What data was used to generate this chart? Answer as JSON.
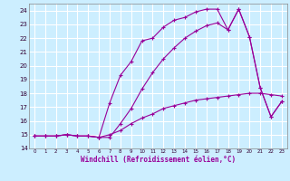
{
  "xlabel": "Windchill (Refroidissement éolien,°C)",
  "background_color": "#cceeff",
  "grid_color": "#ffffff",
  "line_color": "#990099",
  "xlim": [
    -0.5,
    23.5
  ],
  "ylim": [
    14.0,
    24.5
  ],
  "yticks": [
    14,
    15,
    16,
    17,
    18,
    19,
    20,
    21,
    22,
    23,
    24
  ],
  "xticks": [
    0,
    1,
    2,
    3,
    4,
    5,
    6,
    7,
    8,
    9,
    10,
    11,
    12,
    13,
    14,
    15,
    16,
    17,
    18,
    19,
    20,
    21,
    22,
    23
  ],
  "line1_x": [
    0,
    1,
    2,
    3,
    4,
    5,
    6,
    7,
    8,
    9,
    10,
    11,
    12,
    13,
    14,
    15,
    16,
    17,
    18,
    19,
    20,
    21,
    22,
    23
  ],
  "line1_y": [
    14.9,
    14.9,
    14.9,
    15.0,
    14.9,
    14.9,
    14.8,
    15.0,
    15.3,
    15.8,
    16.2,
    16.5,
    16.9,
    17.1,
    17.3,
    17.5,
    17.6,
    17.7,
    17.8,
    17.9,
    18.0,
    18.0,
    17.9,
    17.8
  ],
  "line2_x": [
    0,
    1,
    2,
    3,
    4,
    5,
    6,
    7,
    8,
    9,
    10,
    11,
    12,
    13,
    14,
    15,
    16,
    17,
    18,
    19,
    20,
    21,
    22,
    23
  ],
  "line2_y": [
    14.9,
    14.9,
    14.9,
    15.0,
    14.9,
    14.9,
    14.8,
    17.3,
    19.3,
    20.3,
    21.8,
    22.0,
    22.8,
    23.3,
    23.5,
    23.9,
    24.1,
    24.1,
    22.6,
    24.1,
    22.1,
    18.4,
    16.3,
    17.4
  ],
  "line3_x": [
    0,
    1,
    2,
    3,
    4,
    5,
    6,
    7,
    8,
    9,
    10,
    11,
    12,
    13,
    14,
    15,
    16,
    17,
    18,
    19,
    20,
    21,
    22,
    23
  ],
  "line3_y": [
    14.9,
    14.9,
    14.9,
    15.0,
    14.9,
    14.9,
    14.8,
    14.8,
    15.8,
    16.9,
    18.3,
    19.5,
    20.5,
    21.3,
    22.0,
    22.5,
    22.9,
    23.1,
    22.6,
    24.1,
    22.1,
    18.4,
    16.3,
    17.4
  ]
}
